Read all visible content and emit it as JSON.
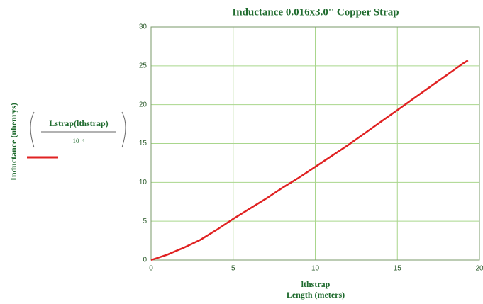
{
  "chart_data": {
    "type": "line",
    "title": "Inductance 0.016x3.0'' Copper Strap",
    "y_label": "Inductance (uhenrys)",
    "x_label": "lthstrap",
    "x_sublabel": "Length (meters)",
    "legend_denominator": "10⁻⁶",
    "x": [
      0,
      1,
      2,
      3,
      4,
      5,
      6,
      7,
      8,
      9,
      10,
      11,
      12,
      13,
      14,
      15,
      16,
      17,
      18,
      19,
      19.3
    ],
    "series": [
      {
        "name": "Lstrap(lthstrap)",
        "color": "#e02222",
        "values": [
          0,
          0.7,
          1.6,
          2.6,
          3.9,
          5.3,
          6.6,
          7.9,
          9.3,
          10.6,
          12.0,
          13.4,
          14.8,
          16.3,
          17.8,
          19.3,
          20.8,
          22.3,
          23.8,
          25.3,
          25.7
        ]
      }
    ],
    "xlim": [
      0,
      20
    ],
    "xticks": [
      0,
      5,
      10,
      15,
      20
    ],
    "ylim": [
      0,
      30
    ],
    "yticks": [
      0,
      5,
      10,
      15,
      20,
      25,
      30
    ],
    "grid": true,
    "grid_color": "#a9d68c"
  }
}
